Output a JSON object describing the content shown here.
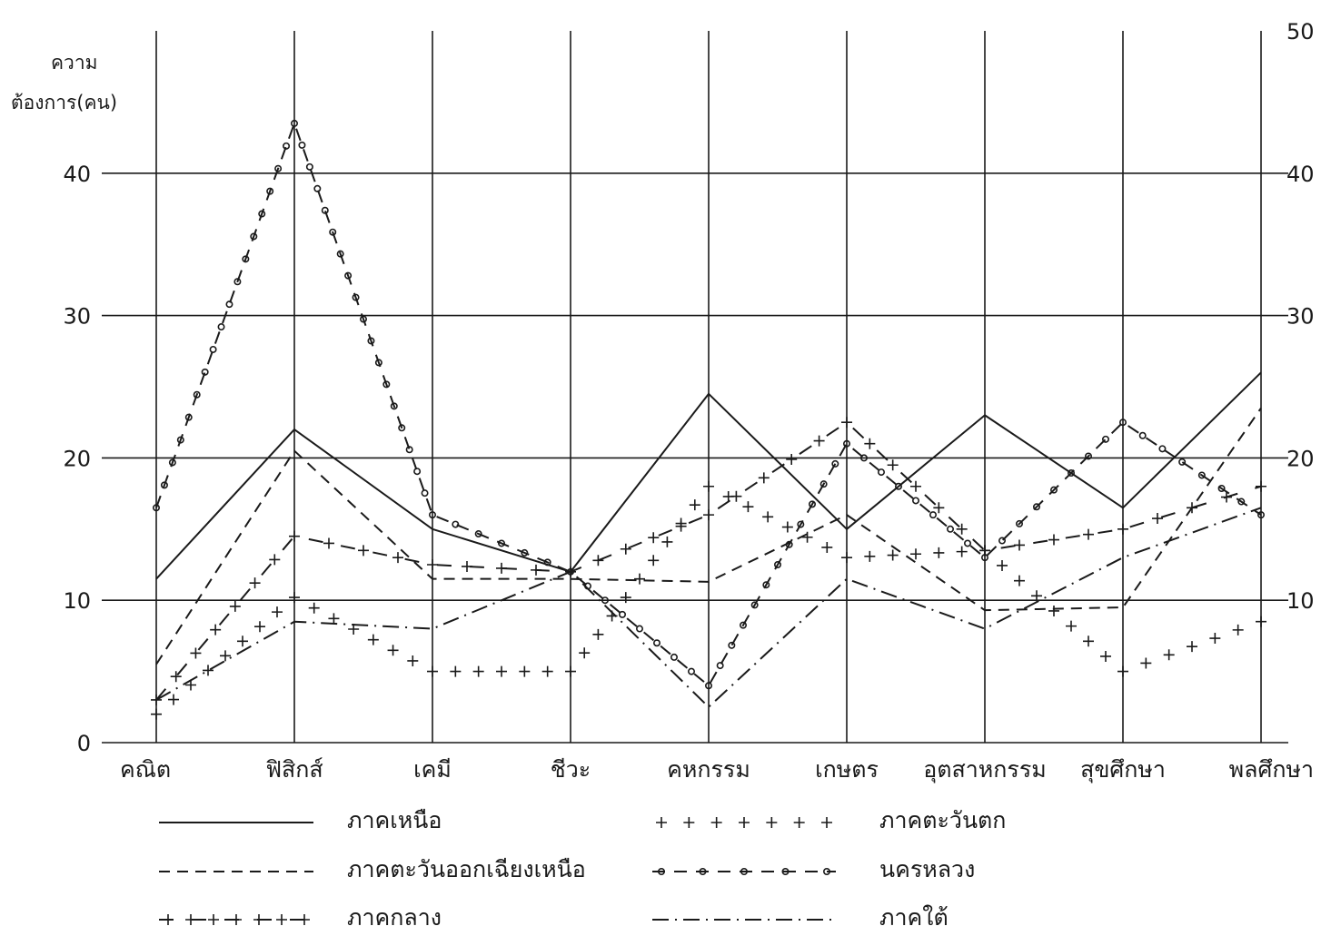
{
  "chart_data": {
    "type": "line",
    "ylabel_line1": "ความ",
    "ylabel_line2": "ต้องการ(คน)",
    "categories": [
      "คณิต",
      "ฟิสิกส์",
      "เคมี",
      "ชีวะ",
      "คหกรรม",
      "เกษตร",
      "อุตสาหกรรม",
      "สุขศึกษา",
      "พลศึกษา"
    ],
    "ylim": [
      0,
      50
    ],
    "yticks_left": [
      0,
      10,
      20,
      30,
      40
    ],
    "yticks_right": [
      10,
      20,
      30,
      40,
      50
    ],
    "grid": true,
    "legend_position": "bottom",
    "series": [
      {
        "name": "ภาคเหนือ",
        "style": "solid",
        "values": [
          11.5,
          22,
          15,
          12,
          24.5,
          15,
          23,
          16.5,
          26
        ]
      },
      {
        "name": "ภาคตะวันออกเฉียงเหนือ",
        "style": "dashed",
        "values": [
          5.5,
          20.5,
          11.5,
          11.5,
          11.3,
          16,
          9.3,
          9.5,
          23.5
        ]
      },
      {
        "name": "ภาคกลาง",
        "style": "plus-dash",
        "values": [
          3,
          14.5,
          12.5,
          12,
          16,
          22.5,
          13.5,
          15,
          18
        ]
      },
      {
        "name": "ภาคตะวันตก",
        "style": "plus",
        "values": [
          2,
          10.2,
          5,
          5,
          18,
          13,
          13.5,
          5,
          8.5
        ]
      },
      {
        "name": "นครหลวง",
        "style": "circle-dash",
        "values": [
          16.5,
          43.5,
          16,
          12,
          4,
          21,
          13,
          22.5,
          16
        ]
      },
      {
        "name": "ภาคใต้",
        "style": "dash-dot",
        "values": [
          3,
          8.5,
          8,
          12,
          2.5,
          11.5,
          8,
          13,
          16.5
        ]
      }
    ]
  }
}
